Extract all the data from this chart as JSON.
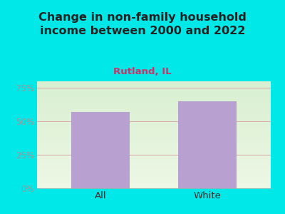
{
  "categories": [
    "All",
    "White"
  ],
  "values": [
    57.0,
    65.0
  ],
  "bar_color": "#b8a0d0",
  "title": "Change in non-family household\nincome between 2000 and 2022",
  "subtitle": "Rutland, IL",
  "ylim": [
    0,
    80
  ],
  "yticks": [
    0,
    25,
    50,
    75
  ],
  "ytick_labels": [
    "0%",
    "25%",
    "50%",
    "75%"
  ],
  "title_fontsize": 11.5,
  "subtitle_fontsize": 9.5,
  "title_color": "#222222",
  "subtitle_color": "#cc3366",
  "tick_label_color": "#999999",
  "xtick_label_color": "#333333",
  "background_color": "#00e8e8",
  "grid_color": "#ddb0b0",
  "bar_width": 0.55
}
